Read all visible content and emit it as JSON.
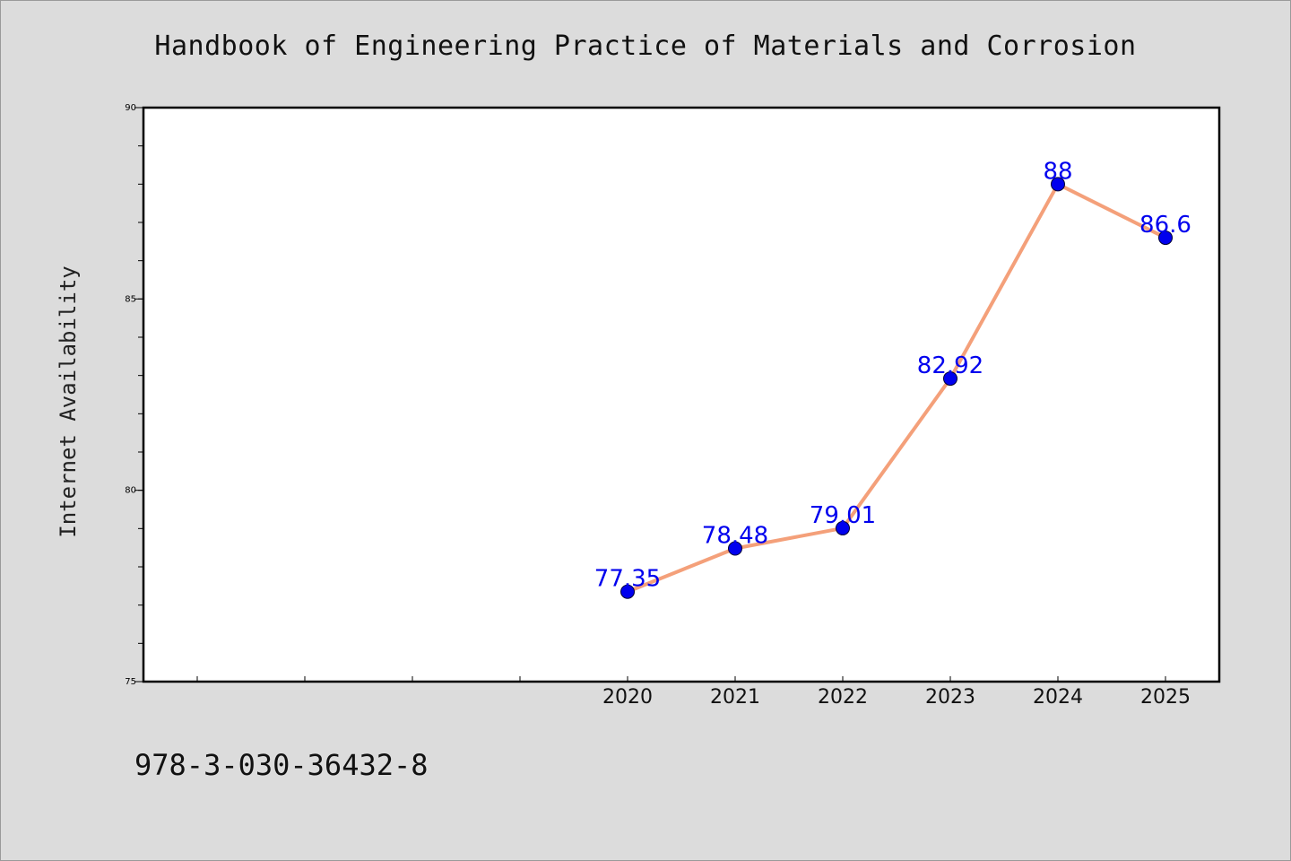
{
  "chart_data": {
    "type": "line",
    "title": "Handbook of Engineering Practice of Materials and Corrosion",
    "ylabel": "Internet Availability",
    "xlabel": "",
    "footer_text": "978-3-030-36432-8",
    "categories": [
      "2020",
      "2021",
      "2022",
      "2023",
      "2024",
      "2025"
    ],
    "values": [
      77.35,
      78.48,
      79.01,
      82.92,
      88,
      86.6
    ],
    "data_labels": [
      "77.35",
      "78.48",
      "79.01",
      "82.92",
      "88",
      "86.6"
    ],
    "ylim": [
      75,
      90
    ],
    "y_ticks": [
      75,
      80,
      85,
      90
    ],
    "grid": false,
    "colors": {
      "line": "#f4a07a",
      "marker": "#0000ee",
      "label": "#0000ee",
      "background": "#dcdcdc",
      "plot_background": "#ffffff"
    }
  }
}
